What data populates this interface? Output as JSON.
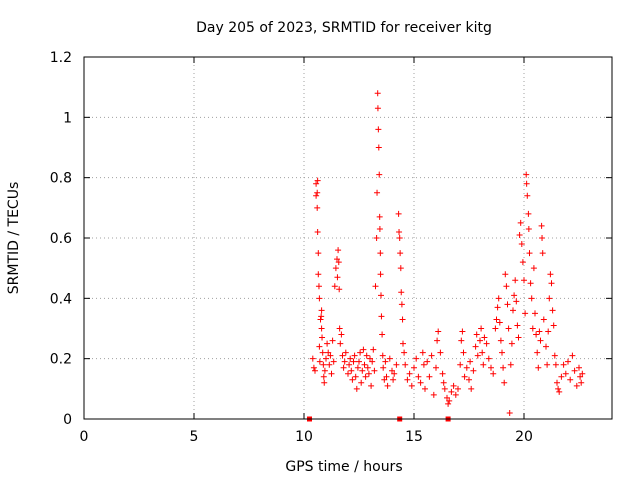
{
  "chart_data": {
    "type": "scatter",
    "title": "Day 205 of 2023, SRMTID for receiver kitg",
    "xlabel": "GPS time / hours",
    "ylabel": "SRMTID / TECUs",
    "xlim": [
      0,
      24
    ],
    "ylim": [
      0,
      1.2
    ],
    "grid": true,
    "x_ticks": [
      0,
      5,
      10,
      15,
      20
    ],
    "x_tick_labels": [
      "0",
      "5",
      "10",
      "15",
      "20"
    ],
    "y_ticks": [
      0,
      0.2,
      0.4,
      0.6,
      0.8,
      1,
      1.2
    ],
    "y_tick_labels": [
      "0",
      "0.2",
      "0.4",
      "0.6",
      "0.8",
      "1",
      "1.2"
    ],
    "marker": "plus",
    "series_color": "#ff0000",
    "gap_markers_x": [
      10.25,
      14.35,
      16.55
    ],
    "series": [
      {
        "name": "SRMTID",
        "points": [
          [
            10.4,
            0.2
          ],
          [
            10.45,
            0.17
          ],
          [
            10.5,
            0.16
          ],
          [
            10.55,
            0.78
          ],
          [
            10.55,
            0.74
          ],
          [
            10.6,
            0.75
          ],
          [
            10.6,
            0.7
          ],
          [
            10.62,
            0.79
          ],
          [
            10.62,
            0.62
          ],
          [
            10.65,
            0.55
          ],
          [
            10.65,
            0.48
          ],
          [
            10.68,
            0.44
          ],
          [
            10.7,
            0.4
          ],
          [
            10.7,
            0.24
          ],
          [
            10.72,
            0.19
          ],
          [
            10.75,
            0.33
          ],
          [
            10.78,
            0.34
          ],
          [
            10.8,
            0.36
          ],
          [
            10.8,
            0.3
          ],
          [
            10.82,
            0.27
          ],
          [
            10.85,
            0.22
          ],
          [
            10.88,
            0.18
          ],
          [
            10.9,
            0.14
          ],
          [
            10.92,
            0.12
          ],
          [
            10.95,
            0.16
          ],
          [
            11.0,
            0.2
          ],
          [
            11.05,
            0.25
          ],
          [
            11.1,
            0.22
          ],
          [
            11.15,
            0.18
          ],
          [
            11.2,
            0.21
          ],
          [
            11.25,
            0.15
          ],
          [
            11.3,
            0.26
          ],
          [
            11.35,
            0.19
          ],
          [
            11.4,
            0.44
          ],
          [
            11.45,
            0.5
          ],
          [
            11.5,
            0.53
          ],
          [
            11.52,
            0.47
          ],
          [
            11.55,
            0.56
          ],
          [
            11.58,
            0.52
          ],
          [
            11.6,
            0.43
          ],
          [
            11.62,
            0.3
          ],
          [
            11.65,
            0.25
          ],
          [
            11.7,
            0.28
          ],
          [
            11.75,
            0.21
          ],
          [
            11.8,
            0.17
          ],
          [
            11.85,
            0.19
          ],
          [
            11.9,
            0.22
          ],
          [
            12.0,
            0.15
          ],
          [
            12.05,
            0.18
          ],
          [
            12.1,
            0.2
          ],
          [
            12.15,
            0.16
          ],
          [
            12.2,
            0.13
          ],
          [
            12.25,
            0.19
          ],
          [
            12.3,
            0.21
          ],
          [
            12.35,
            0.14
          ],
          [
            12.4,
            0.1
          ],
          [
            12.45,
            0.17
          ],
          [
            12.5,
            0.19
          ],
          [
            12.55,
            0.22
          ],
          [
            12.6,
            0.12
          ],
          [
            12.65,
            0.16
          ],
          [
            12.7,
            0.23
          ],
          [
            12.75,
            0.18
          ],
          [
            12.8,
            0.14
          ],
          [
            12.85,
            0.21
          ],
          [
            12.9,
            0.17
          ],
          [
            12.95,
            0.15
          ],
          [
            13.0,
            0.2
          ],
          [
            13.05,
            0.11
          ],
          [
            13.1,
            0.19
          ],
          [
            13.15,
            0.23
          ],
          [
            13.2,
            0.16
          ],
          [
            13.25,
            0.44
          ],
          [
            13.3,
            0.6
          ],
          [
            13.32,
            0.75
          ],
          [
            13.35,
            1.08
          ],
          [
            13.36,
            1.03
          ],
          [
            13.38,
            0.96
          ],
          [
            13.4,
            0.9
          ],
          [
            13.42,
            0.81
          ],
          [
            13.44,
            0.67
          ],
          [
            13.45,
            0.63
          ],
          [
            13.47,
            0.55
          ],
          [
            13.48,
            0.48
          ],
          [
            13.5,
            0.41
          ],
          [
            13.52,
            0.34
          ],
          [
            13.55,
            0.28
          ],
          [
            13.58,
            0.21
          ],
          [
            13.6,
            0.17
          ],
          [
            13.65,
            0.13
          ],
          [
            13.7,
            0.19
          ],
          [
            13.75,
            0.14
          ],
          [
            13.8,
            0.11
          ],
          [
            13.9,
            0.2
          ],
          [
            14.0,
            0.16
          ],
          [
            14.05,
            0.13
          ],
          [
            14.1,
            0.15
          ],
          [
            14.2,
            0.18
          ],
          [
            14.3,
            0.68
          ],
          [
            14.32,
            0.62
          ],
          [
            14.35,
            0.6
          ],
          [
            14.37,
            0.55
          ],
          [
            14.4,
            0.5
          ],
          [
            14.42,
            0.42
          ],
          [
            14.45,
            0.38
          ],
          [
            14.48,
            0.33
          ],
          [
            14.5,
            0.25
          ],
          [
            14.55,
            0.22
          ],
          [
            14.6,
            0.18
          ],
          [
            14.7,
            0.13
          ],
          [
            14.8,
            0.15
          ],
          [
            14.9,
            0.11
          ],
          [
            15.0,
            0.17
          ],
          [
            15.1,
            0.2
          ],
          [
            15.2,
            0.14
          ],
          [
            15.3,
            0.12
          ],
          [
            15.4,
            0.22
          ],
          [
            15.45,
            0.18
          ],
          [
            15.5,
            0.1
          ],
          [
            15.6,
            0.19
          ],
          [
            15.7,
            0.14
          ],
          [
            15.8,
            0.21
          ],
          [
            15.9,
            0.08
          ],
          [
            16.0,
            0.17
          ],
          [
            16.05,
            0.26
          ],
          [
            16.1,
            0.29
          ],
          [
            16.2,
            0.22
          ],
          [
            16.3,
            0.15
          ],
          [
            16.35,
            0.12
          ],
          [
            16.4,
            0.1
          ],
          [
            16.5,
            0.07
          ],
          [
            16.55,
            0.05
          ],
          [
            16.6,
            0.06
          ],
          [
            16.7,
            0.09
          ],
          [
            16.8,
            0.11
          ],
          [
            16.9,
            0.08
          ],
          [
            17.0,
            0.1
          ],
          [
            17.1,
            0.18
          ],
          [
            17.15,
            0.26
          ],
          [
            17.2,
            0.29
          ],
          [
            17.25,
            0.22
          ],
          [
            17.3,
            0.14
          ],
          [
            17.4,
            0.17
          ],
          [
            17.5,
            0.13
          ],
          [
            17.55,
            0.19
          ],
          [
            17.6,
            0.1
          ],
          [
            17.7,
            0.16
          ],
          [
            17.8,
            0.24
          ],
          [
            17.85,
            0.28
          ],
          [
            17.9,
            0.21
          ],
          [
            18.0,
            0.26
          ],
          [
            18.05,
            0.3
          ],
          [
            18.1,
            0.22
          ],
          [
            18.15,
            0.18
          ],
          [
            18.2,
            0.27
          ],
          [
            18.3,
            0.25
          ],
          [
            18.4,
            0.2
          ],
          [
            18.5,
            0.17
          ],
          [
            18.6,
            0.15
          ],
          [
            18.7,
            0.3
          ],
          [
            18.75,
            0.33
          ],
          [
            18.8,
            0.37
          ],
          [
            18.85,
            0.4
          ],
          [
            18.9,
            0.32
          ],
          [
            18.95,
            0.26
          ],
          [
            19.0,
            0.22
          ],
          [
            19.05,
            0.17
          ],
          [
            19.1,
            0.12
          ],
          [
            19.15,
            0.48
          ],
          [
            19.2,
            0.44
          ],
          [
            19.25,
            0.38
          ],
          [
            19.3,
            0.3
          ],
          [
            19.35,
            0.02
          ],
          [
            19.4,
            0.18
          ],
          [
            19.45,
            0.25
          ],
          [
            19.5,
            0.36
          ],
          [
            19.55,
            0.41
          ],
          [
            19.6,
            0.46
          ],
          [
            19.65,
            0.39
          ],
          [
            19.7,
            0.31
          ],
          [
            19.75,
            0.27
          ],
          [
            19.8,
            0.61
          ],
          [
            19.85,
            0.65
          ],
          [
            19.9,
            0.58
          ],
          [
            19.95,
            0.52
          ],
          [
            20.0,
            0.46
          ],
          [
            20.05,
            0.35
          ],
          [
            20.1,
            0.81
          ],
          [
            20.12,
            0.78
          ],
          [
            20.15,
            0.74
          ],
          [
            20.2,
            0.68
          ],
          [
            20.22,
            0.63
          ],
          [
            20.25,
            0.55
          ],
          [
            20.3,
            0.45
          ],
          [
            20.35,
            0.4
          ],
          [
            20.4,
            0.3
          ],
          [
            20.45,
            0.5
          ],
          [
            20.5,
            0.35
          ],
          [
            20.55,
            0.28
          ],
          [
            20.6,
            0.22
          ],
          [
            20.65,
            0.17
          ],
          [
            20.7,
            0.29
          ],
          [
            20.75,
            0.26
          ],
          [
            20.8,
            0.64
          ],
          [
            20.82,
            0.6
          ],
          [
            20.85,
            0.55
          ],
          [
            20.9,
            0.33
          ],
          [
            21.0,
            0.24
          ],
          [
            21.05,
            0.18
          ],
          [
            21.1,
            0.29
          ],
          [
            21.15,
            0.4
          ],
          [
            21.2,
            0.48
          ],
          [
            21.25,
            0.45
          ],
          [
            21.3,
            0.36
          ],
          [
            21.35,
            0.31
          ],
          [
            21.4,
            0.21
          ],
          [
            21.45,
            0.18
          ],
          [
            21.5,
            0.12
          ],
          [
            21.55,
            0.1
          ],
          [
            21.6,
            0.09
          ],
          [
            21.7,
            0.14
          ],
          [
            21.8,
            0.18
          ],
          [
            21.9,
            0.15
          ],
          [
            22.0,
            0.19
          ],
          [
            22.1,
            0.13
          ],
          [
            22.2,
            0.21
          ],
          [
            22.3,
            0.16
          ],
          [
            22.4,
            0.11
          ],
          [
            22.5,
            0.17
          ],
          [
            22.55,
            0.14
          ],
          [
            22.6,
            0.12
          ],
          [
            22.65,
            0.15
          ]
        ]
      }
    ]
  }
}
